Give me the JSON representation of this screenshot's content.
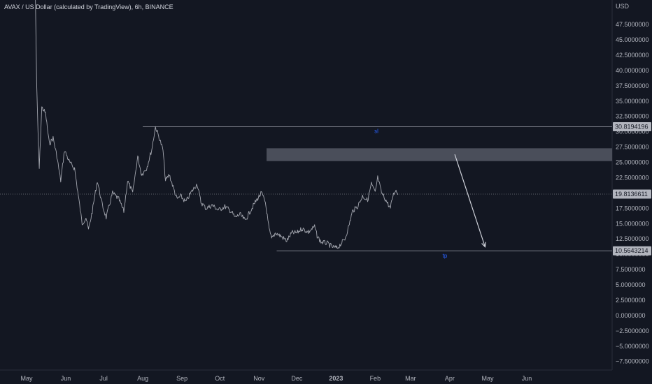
{
  "header": {
    "title": "AVAX / US Dollar (calculated by TradingView), 6h, BINANCE"
  },
  "axis": {
    "currency": "USD"
  },
  "colors": {
    "background": "#131722",
    "price": "#a3a6af",
    "level_line": "#787b86",
    "zone": "#4a4e5a",
    "label_blue": "#2962ff",
    "arrow": "#d1d4dc",
    "badge": "#b2b5be"
  },
  "chart_data": {
    "type": "line",
    "symbol": "AVAX/USD",
    "interval": "6h",
    "exchange": "BINANCE",
    "ylim": [
      -8.9,
      51.5
    ],
    "y_ticks": [
      47.5,
      45,
      42.5,
      40,
      37.5,
      35,
      32.5,
      30,
      27.5,
      25,
      22.5,
      20,
      17.5,
      15,
      12.5,
      10,
      7.5,
      5,
      2.5,
      0,
      -2.5,
      -5,
      -7.5
    ],
    "y_tick_labels": [
      "47.5000000",
      "45.0000000",
      "42.5000000",
      "40.0000000",
      "37.5000000",
      "35.0000000",
      "32.5000000",
      "30.0000000",
      "27.5000000",
      "25.0000000",
      "22.5000000",
      "20.0000000",
      "17.5000000",
      "15.0000000",
      "12.5000000",
      "10.0000000",
      "7.5000000",
      "5.0000000",
      "2.5000000",
      "0.0000000",
      "−2.5000000",
      "−5.0000000",
      "−7.5000000"
    ],
    "x_labels": [
      "May",
      "Jun",
      "Jul",
      "Aug",
      "Sep",
      "Oct",
      "Nov",
      "Dec",
      "2023",
      "Feb",
      "Mar",
      "Apr",
      "May",
      "Jun"
    ],
    "x_label_dates": [
      "2022-05-01",
      "2022-06-01",
      "2022-07-01",
      "2022-08-01",
      "2022-09-01",
      "2022-10-01",
      "2022-11-01",
      "2022-12-01",
      "2023-01-01",
      "2023-02-01",
      "2023-03-01",
      "2023-04-01",
      "2023-05-01",
      "2023-06-01"
    ],
    "series": [
      {
        "points": [
          [
            "2022-05-08",
            52
          ],
          [
            "2022-05-09",
            38
          ],
          [
            "2022-05-10",
            30
          ],
          [
            "2022-05-11",
            24
          ],
          [
            "2022-05-13",
            34
          ],
          [
            "2022-05-16",
            33
          ],
          [
            "2022-05-19",
            28
          ],
          [
            "2022-05-22",
            29
          ],
          [
            "2022-05-25",
            26
          ],
          [
            "2022-05-28",
            22
          ],
          [
            "2022-05-31",
            27
          ],
          [
            "2022-06-04",
            25
          ],
          [
            "2022-06-08",
            24
          ],
          [
            "2022-06-12",
            18
          ],
          [
            "2022-06-14",
            15
          ],
          [
            "2022-06-17",
            16
          ],
          [
            "2022-06-19",
            14
          ],
          [
            "2022-06-22",
            17
          ],
          [
            "2022-06-26",
            22
          ],
          [
            "2022-06-30",
            18
          ],
          [
            "2022-07-03",
            16
          ],
          [
            "2022-07-08",
            20
          ],
          [
            "2022-07-13",
            19
          ],
          [
            "2022-07-17",
            17
          ],
          [
            "2022-07-20",
            22
          ],
          [
            "2022-07-24",
            20
          ],
          [
            "2022-07-28",
            26
          ],
          [
            "2022-07-31",
            23
          ],
          [
            "2022-08-04",
            24
          ],
          [
            "2022-08-08",
            27
          ],
          [
            "2022-08-11",
            30.8
          ],
          [
            "2022-08-14",
            29
          ],
          [
            "2022-08-17",
            27
          ],
          [
            "2022-08-19",
            22
          ],
          [
            "2022-08-22",
            23
          ],
          [
            "2022-08-25",
            21
          ],
          [
            "2022-08-28",
            19
          ],
          [
            "2022-08-31",
            19.5
          ],
          [
            "2022-09-04",
            18.5
          ],
          [
            "2022-09-08",
            20
          ],
          [
            "2022-09-13",
            21.5
          ],
          [
            "2022-09-16",
            18.5
          ],
          [
            "2022-09-20",
            17.5
          ],
          [
            "2022-09-25",
            18
          ],
          [
            "2022-09-30",
            17.2
          ],
          [
            "2022-10-05",
            17.8
          ],
          [
            "2022-10-10",
            17
          ],
          [
            "2022-10-13",
            16
          ],
          [
            "2022-10-17",
            16.5
          ],
          [
            "2022-10-21",
            15.5
          ],
          [
            "2022-10-25",
            17
          ],
          [
            "2022-10-29",
            18.5
          ],
          [
            "2022-11-03",
            20
          ],
          [
            "2022-11-06",
            18.5
          ],
          [
            "2022-11-09",
            14
          ],
          [
            "2022-11-11",
            12.5
          ],
          [
            "2022-11-14",
            13.5
          ],
          [
            "2022-11-18",
            13
          ],
          [
            "2022-11-23",
            12.2
          ],
          [
            "2022-11-27",
            13.5
          ],
          [
            "2022-12-01",
            13.5
          ],
          [
            "2022-12-05",
            14.2
          ],
          [
            "2022-12-10",
            13.6
          ],
          [
            "2022-12-15",
            14.5
          ],
          [
            "2022-12-17",
            13
          ],
          [
            "2022-12-20",
            12
          ],
          [
            "2022-12-25",
            11.8
          ],
          [
            "2022-12-29",
            11.2
          ],
          [
            "2023-01-02",
            11
          ],
          [
            "2023-01-04",
            11.5
          ],
          [
            "2023-01-08",
            12.5
          ],
          [
            "2023-01-11",
            14.5
          ],
          [
            "2023-01-14",
            17
          ],
          [
            "2023-01-18",
            17.8
          ],
          [
            "2023-01-22",
            19.5
          ],
          [
            "2023-01-26",
            18.8
          ],
          [
            "2023-01-29",
            21.5
          ],
          [
            "2023-02-01",
            20
          ],
          [
            "2023-02-03",
            22.5
          ],
          [
            "2023-02-06",
            20
          ],
          [
            "2023-02-09",
            19
          ],
          [
            "2023-02-13",
            17.5
          ],
          [
            "2023-02-15",
            19.5
          ],
          [
            "2023-02-17",
            20.5
          ],
          [
            "2023-02-19",
            19.9
          ]
        ]
      }
    ],
    "levels": [
      {
        "label": "sl",
        "value": 30.8194196,
        "badge": "30.8194196",
        "from": "2022-08-01",
        "to": "end"
      },
      {
        "label": "tp",
        "value": 10.5643214,
        "badge": "10.5643214",
        "from": "2022-11-15",
        "to": "end"
      }
    ],
    "current_price": {
      "value": 19.8136611,
      "badge": "19.8136611"
    },
    "zone": {
      "from": "2022-11-07",
      "to": "end",
      "top": 27.3,
      "bottom": 25.2
    },
    "arrow": {
      "from": [
        "2023-04-05",
        26.3
      ],
      "to": [
        "2023-04-29",
        11.2
      ]
    },
    "grid": false,
    "legend": "none"
  }
}
